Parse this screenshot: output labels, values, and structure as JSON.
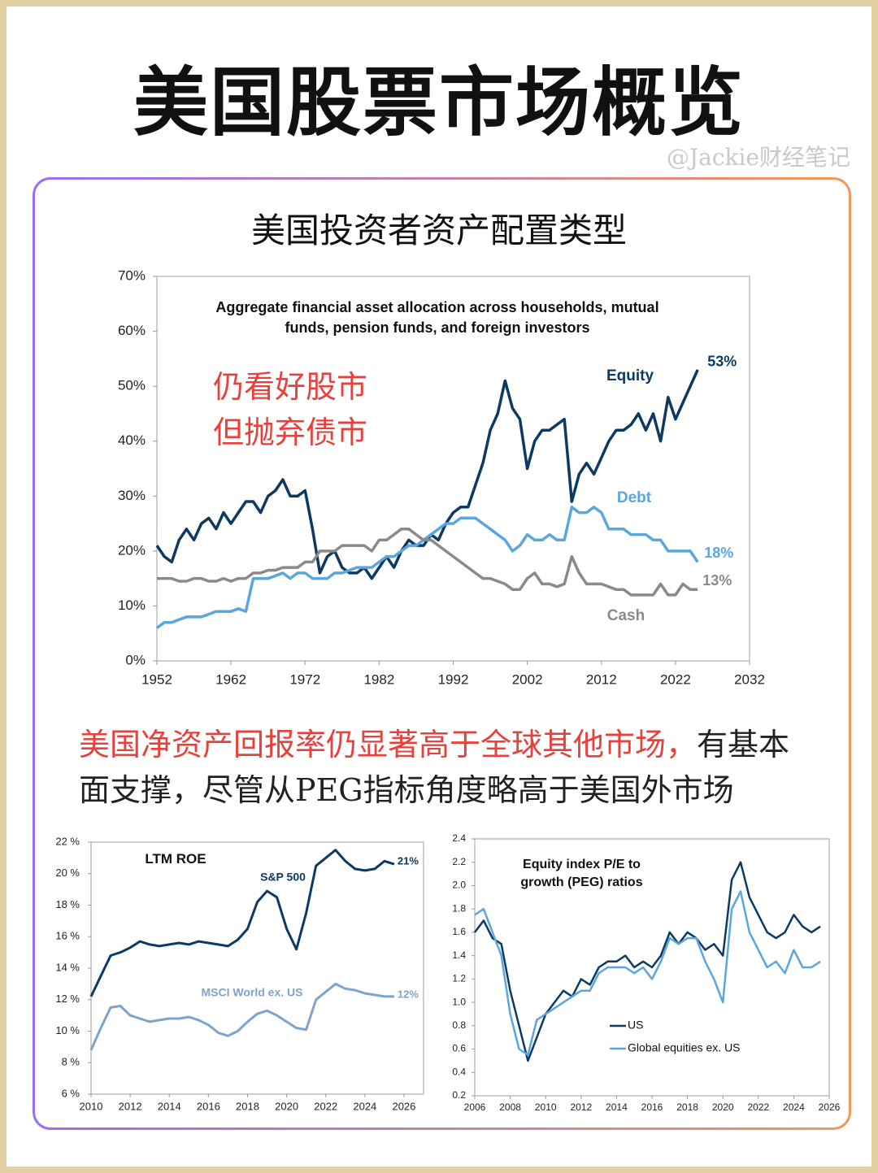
{
  "header": {
    "title": "美国股票市场概览",
    "watermark": "@Jackie财经笔记"
  },
  "section": {
    "title": "美国投资者资产配置类型",
    "annotation": [
      "仍看好股市",
      "但抛弃债市"
    ],
    "paragraph": {
      "highlight": "美国净资产回报率仍显著高于全球其他市场，",
      "text": "有基本面支撑，尽管从PEG指标角度略高于美国外市场"
    }
  },
  "chart_data": [
    {
      "type": "line",
      "title": "Aggregate financial asset allocation across households, mutual funds, pension funds, and foreign investors",
      "x": [
        1952,
        1953,
        1954,
        1955,
        1956,
        1957,
        1958,
        1959,
        1960,
        1961,
        1962,
        1963,
        1964,
        1965,
        1966,
        1967,
        1968,
        1969,
        1970,
        1971,
        1972,
        1973,
        1974,
        1975,
        1976,
        1977,
        1978,
        1979,
        1980,
        1981,
        1982,
        1983,
        1984,
        1985,
        1986,
        1987,
        1988,
        1989,
        1990,
        1991,
        1992,
        1993,
        1994,
        1995,
        1996,
        1997,
        1998,
        1999,
        2000,
        2001,
        2002,
        2003,
        2004,
        2005,
        2006,
        2007,
        2008,
        2009,
        2010,
        2011,
        2012,
        2013,
        2014,
        2015,
        2016,
        2017,
        2018,
        2019,
        2020,
        2021,
        2022,
        2023,
        2024,
        2025
      ],
      "series": [
        {
          "name": "Equity",
          "color": "#0d3a63",
          "end_label": "53%",
          "values": [
            21,
            19,
            18,
            22,
            24,
            22,
            25,
            26,
            24,
            27,
            25,
            27,
            29,
            29,
            27,
            30,
            31,
            33,
            30,
            30,
            31,
            24,
            16,
            19,
            20,
            17,
            16,
            16,
            17,
            15,
            17,
            19,
            17,
            20,
            22,
            21,
            21,
            23,
            22,
            25,
            27,
            28,
            28,
            32,
            36,
            42,
            45,
            51,
            46,
            44,
            35,
            40,
            42,
            42,
            43,
            44,
            29,
            34,
            36,
            34,
            37,
            40,
            42,
            42,
            43,
            45,
            42,
            45,
            40,
            48,
            44,
            47,
            50,
            53
          ]
        },
        {
          "name": "Debt",
          "color": "#5aa6dd",
          "end_label": "18%",
          "values": [
            6,
            7,
            7,
            7.5,
            8,
            8,
            8,
            8.5,
            9,
            9,
            9,
            9.5,
            9,
            15,
            15,
            15,
            15.5,
            16,
            15,
            16,
            16,
            15,
            15,
            15,
            16,
            16,
            16.5,
            17,
            17,
            17,
            18,
            19,
            19,
            20,
            21,
            21,
            22,
            23,
            24,
            25,
            25,
            26,
            26,
            26,
            25,
            24,
            23,
            22,
            20,
            21,
            23,
            22,
            22,
            23,
            22,
            22,
            28,
            27,
            27,
            28,
            27,
            24,
            24,
            24,
            23,
            23,
            23,
            22,
            22,
            20,
            20,
            20,
            20,
            18
          ]
        },
        {
          "name": "Cash",
          "color": "#8a8a8a",
          "end_label": "13%",
          "values": [
            15,
            15,
            15,
            14.5,
            14.5,
            15,
            15,
            14.5,
            14.5,
            15,
            14.5,
            15,
            15,
            16,
            16,
            16.5,
            16.5,
            17,
            17,
            17,
            18,
            18,
            20,
            20,
            20,
            21,
            21,
            21,
            21,
            20,
            22,
            22,
            23,
            24,
            24,
            23,
            22,
            22,
            21,
            20,
            19,
            18,
            17,
            16,
            15,
            15,
            14.5,
            14,
            13,
            13,
            15,
            16,
            14,
            14,
            13.5,
            14,
            19,
            16,
            14,
            14,
            14,
            13.5,
            13,
            13,
            12,
            12,
            12,
            12,
            14,
            12,
            12,
            14,
            13,
            13
          ]
        }
      ],
      "xlim": [
        1952,
        2032
      ],
      "xticks": [
        1952,
        1962,
        1972,
        1982,
        1992,
        2002,
        2012,
        2022,
        2032
      ],
      "ylim": [
        0,
        70
      ],
      "yticks": [
        {
          "value": 0,
          "label": "0%"
        },
        {
          "value": 10,
          "label": "10%"
        },
        {
          "value": 20,
          "label": "20%"
        },
        {
          "value": 30,
          "label": "30%"
        },
        {
          "value": 40,
          "label": "40%"
        },
        {
          "value": 50,
          "label": "50%"
        },
        {
          "value": 60,
          "label": "60%"
        },
        {
          "value": 70,
          "label": "70%"
        }
      ]
    },
    {
      "type": "line",
      "title": "LTM ROE",
      "x": [
        2010,
        2010.5,
        2011,
        2011.5,
        2012,
        2012.5,
        2013,
        2013.5,
        2014,
        2014.5,
        2015,
        2015.5,
        2016,
        2016.5,
        2017,
        2017.5,
        2018,
        2018.5,
        2019,
        2019.5,
        2020,
        2020.5,
        2021,
        2021.5,
        2022,
        2022.5,
        2023,
        2023.5,
        2024,
        2024.5,
        2025,
        2025.5
      ],
      "series": [
        {
          "name": "S&P 500",
          "color": "#0d3a63",
          "end_label": "21%",
          "values": [
            12.2,
            13.5,
            14.8,
            15.0,
            15.3,
            15.7,
            15.5,
            15.4,
            15.5,
            15.6,
            15.5,
            15.7,
            15.6,
            15.5,
            15.4,
            15.8,
            16.5,
            18.2,
            18.9,
            18.5,
            16.5,
            15.2,
            17.5,
            20.5,
            21.0,
            21.5,
            20.8,
            20.3,
            20.2,
            20.3,
            20.8,
            20.6
          ]
        },
        {
          "name": "MSCI World ex. US",
          "color": "#7fa3c9",
          "end_label": "12%",
          "values": [
            8.8,
            10.2,
            11.5,
            11.6,
            11.0,
            10.8,
            10.6,
            10.7,
            10.8,
            10.8,
            10.9,
            10.7,
            10.4,
            9.9,
            9.7,
            10.0,
            10.6,
            11.1,
            11.3,
            11.0,
            10.6,
            10.2,
            10.1,
            12.0,
            12.5,
            13.0,
            12.7,
            12.6,
            12.4,
            12.3,
            12.2,
            12.2
          ]
        }
      ],
      "xlim": [
        2010,
        2027
      ],
      "xticks": [
        2010,
        2012,
        2014,
        2016,
        2018,
        2020,
        2022,
        2024,
        2026
      ],
      "ylim": [
        6,
        22
      ],
      "yticks": [
        {
          "value": 6,
          "label": "6 %"
        },
        {
          "value": 8,
          "label": "8 %"
        },
        {
          "value": 10,
          "label": "10 %"
        },
        {
          "value": 12,
          "label": "12 %"
        },
        {
          "value": 14,
          "label": "14 %"
        },
        {
          "value": 16,
          "label": "16 %"
        },
        {
          "value": 18,
          "label": "18 %"
        },
        {
          "value": 20,
          "label": "20 %"
        },
        {
          "value": 22,
          "label": "22 %"
        }
      ]
    },
    {
      "type": "line",
      "title": "Equity index P/E to growth (PEG) ratios",
      "legend": "bottom-center",
      "x": [
        2006,
        2006.5,
        2007,
        2007.5,
        2008,
        2008.5,
        2009,
        2009.5,
        2010,
        2010.5,
        2011,
        2011.5,
        2012,
        2012.5,
        2013,
        2013.5,
        2014,
        2014.5,
        2015,
        2015.5,
        2016,
        2016.5,
        2017,
        2017.5,
        2018,
        2018.5,
        2019,
        2019.5,
        2020,
        2020.5,
        2021,
        2021.5,
        2022,
        2022.5,
        2023,
        2023.5,
        2024,
        2024.5,
        2025,
        2025.5
      ],
      "series": [
        {
          "name": "US",
          "color": "#0d3a63",
          "values": [
            1.6,
            1.7,
            1.55,
            1.5,
            1.1,
            0.8,
            0.5,
            0.7,
            0.9,
            1.0,
            1.1,
            1.05,
            1.2,
            1.15,
            1.3,
            1.35,
            1.35,
            1.4,
            1.3,
            1.35,
            1.3,
            1.4,
            1.6,
            1.5,
            1.6,
            1.55,
            1.45,
            1.5,
            1.4,
            2.05,
            2.2,
            1.9,
            1.75,
            1.6,
            1.55,
            1.6,
            1.75,
            1.65,
            1.6,
            1.65
          ]
        },
        {
          "name": "Global equities ex. US",
          "color": "#5aa6dd",
          "values": [
            1.75,
            1.8,
            1.6,
            1.4,
            0.9,
            0.6,
            0.55,
            0.85,
            0.9,
            0.95,
            1.0,
            1.05,
            1.1,
            1.1,
            1.25,
            1.3,
            1.3,
            1.3,
            1.25,
            1.3,
            1.2,
            1.35,
            1.55,
            1.5,
            1.55,
            1.55,
            1.35,
            1.2,
            1.0,
            1.8,
            1.95,
            1.6,
            1.45,
            1.3,
            1.35,
            1.25,
            1.45,
            1.3,
            1.3,
            1.35
          ]
        }
      ],
      "xlim": [
        2006,
        2026
      ],
      "xticks": [
        2006,
        2008,
        2010,
        2012,
        2014,
        2016,
        2018,
        2020,
        2022,
        2024,
        2026
      ],
      "ylim": [
        0.2,
        2.4
      ],
      "yticks": [
        0.2,
        0.4,
        0.6,
        0.8,
        {
          "value": 1,
          "label": "1.0"
        },
        1.2,
        1.4,
        1.6,
        1.8,
        {
          "value": 2,
          "label": "2.0"
        },
        2.2,
        2.4
      ]
    }
  ]
}
